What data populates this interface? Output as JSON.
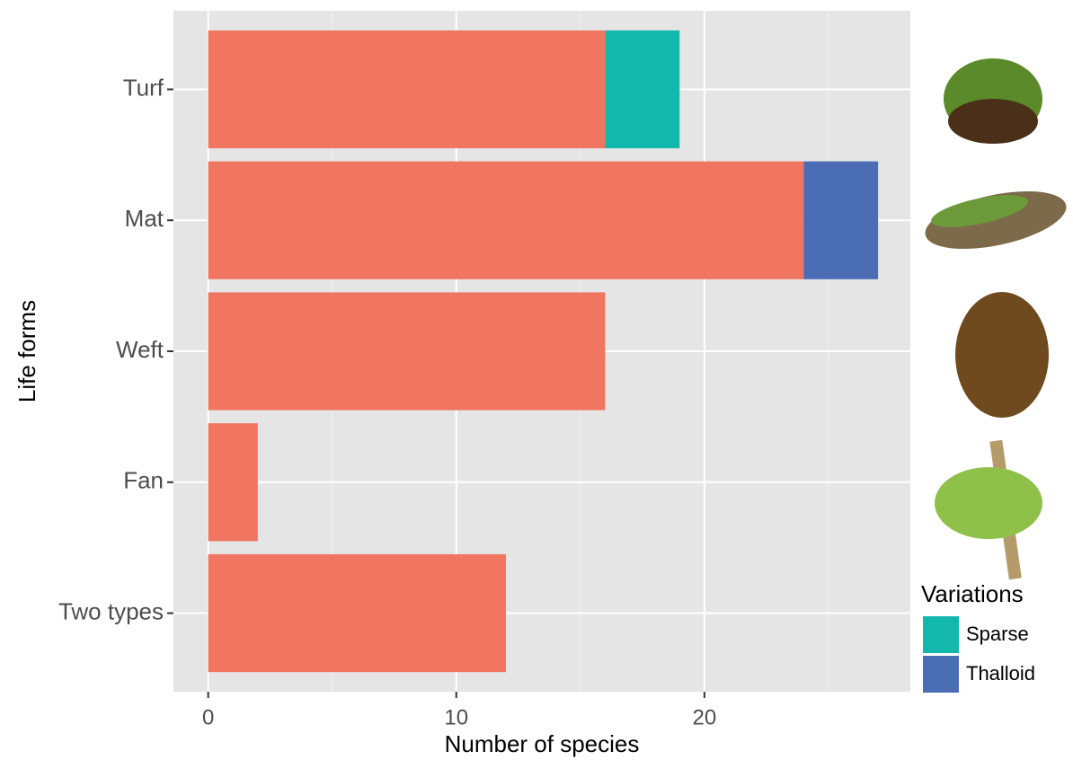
{
  "chart_data": {
    "type": "stacked_barh",
    "xlabel": "Number of species",
    "ylabel": "Life forms",
    "categories": [
      "Turf",
      "Mat",
      "Weft",
      "Fan",
      "Two types"
    ],
    "series": [
      {
        "color": "#f07662",
        "values": [
          16,
          24,
          16,
          2,
          12
        ]
      },
      {
        "name": "Sparse",
        "color": "#12b8ab",
        "values": [
          3,
          0,
          0,
          0,
          0
        ]
      },
      {
        "name": "Thalloid",
        "color": "#4a6db5",
        "values": [
          0,
          3,
          0,
          0,
          0
        ]
      }
    ],
    "legend_title": "Variations",
    "xlim": [
      -1.4,
      28.3
    ],
    "xticks": [
      0,
      10,
      20
    ],
    "minor_xticks": [
      5,
      15,
      25
    ],
    "grid": true
  }
}
